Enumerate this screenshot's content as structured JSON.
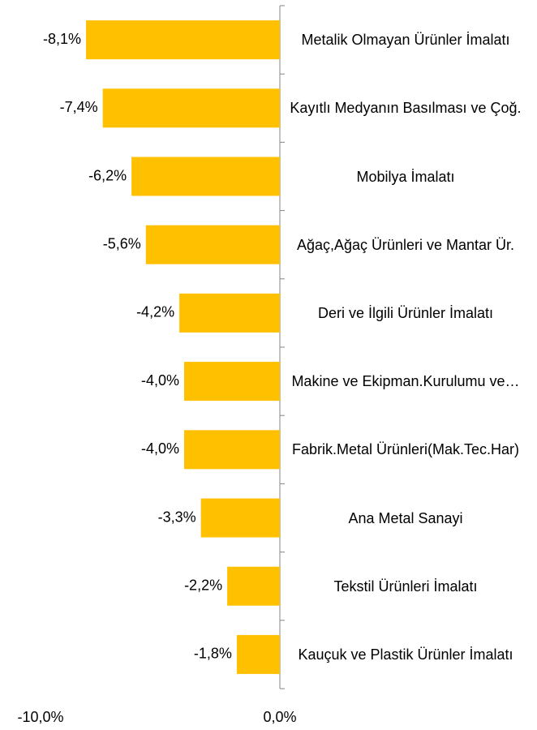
{
  "chart_data": {
    "type": "bar",
    "orientation": "horizontal",
    "categories": [
      "Metalik Olmayan Ürünler İmalatı",
      "Kayıtlı Medyanın Basılması ve Çoğ.",
      "Mobilya İmalatı",
      "Ağaç,Ağaç Ürünleri ve Mantar Ür.",
      "Deri ve İlgili Ürünler İmalatı",
      "Makine ve Ekipman.Kurulumu ve…",
      "Fabrik.Metal Ürünleri(Mak.Tec.Har)",
      "Ana Metal Sanayi",
      "Tekstil Ürünleri İmalatı",
      "Kauçuk ve Plastik Ürünler İmalatı"
    ],
    "values": [
      -8.1,
      -7.4,
      -6.2,
      -5.6,
      -4.2,
      -4.0,
      -4.0,
      -3.3,
      -2.2,
      -1.8
    ],
    "value_labels": [
      "-8,1%",
      "-7,4%",
      "-6,2%",
      "-5,6%",
      "-4,2%",
      "-4,0%",
      "-4,0%",
      "-3,3%",
      "-2,2%",
      "-1,8%"
    ],
    "color": "#ffc000",
    "xlim": [
      -10,
      0
    ],
    "xticks": [
      {
        "value": -10,
        "label": "-10,0%"
      },
      {
        "value": 0,
        "label": "0,0%"
      }
    ]
  }
}
